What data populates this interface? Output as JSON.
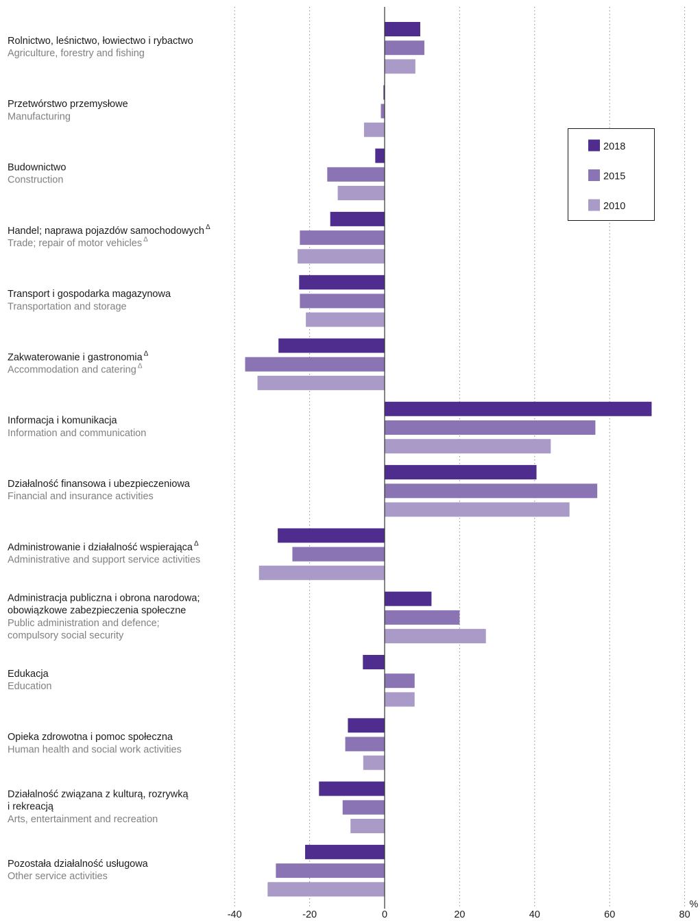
{
  "chart_data": {
    "type": "bar",
    "orientation": "horizontal",
    "unit": "%",
    "xlim": [
      -40,
      80
    ],
    "xticks": [
      "-40",
      "-20",
      "0",
      "20",
      "40",
      "60",
      "80"
    ],
    "grid": "vertical dotted",
    "legend_position": "top-right",
    "categories": [
      {
        "pl": [
          "Rolnictwo, leśnictwo, łowiectwo i rybactwo"
        ],
        "en": [
          "Agriculture, forestry and fishing"
        ],
        "pl_mark": "",
        "en_mark": ""
      },
      {
        "pl": [
          "Przetwórstwo przemysłowe"
        ],
        "en": [
          "Manufacturing"
        ],
        "pl_mark": "",
        "en_mark": ""
      },
      {
        "pl": [
          "Budownictwo"
        ],
        "en": [
          "Construction"
        ],
        "pl_mark": "",
        "en_mark": ""
      },
      {
        "pl": [
          "Handel; naprawa pojazdów samochodowych"
        ],
        "en": [
          "Trade; repair of motor vehicles"
        ],
        "pl_mark": "Δ",
        "en_mark": "Δ"
      },
      {
        "pl": [
          "Transport i gospodarka magazynowa"
        ],
        "en": [
          "Transportation and storage"
        ],
        "pl_mark": "",
        "en_mark": ""
      },
      {
        "pl": [
          "Zakwaterowanie i gastronomia"
        ],
        "en": [
          "Accommodation and catering"
        ],
        "pl_mark": "Δ",
        "en_mark": "Δ"
      },
      {
        "pl": [
          "Informacja i komunikacja"
        ],
        "en": [
          "Information and communication"
        ],
        "pl_mark": "",
        "en_mark": ""
      },
      {
        "pl": [
          "Działalność finansowa i ubezpieczeniowa"
        ],
        "en": [
          "Financial and insurance activities"
        ],
        "pl_mark": "",
        "en_mark": ""
      },
      {
        "pl": [
          "Administrowanie i działalność wspierająca"
        ],
        "en": [
          "Administrative and support service activities"
        ],
        "pl_mark": "Δ",
        "en_mark": ""
      },
      {
        "pl": [
          "Administracja publiczna i obrona narodowa;",
          "obowiązkowe zabezpieczenia społeczne"
        ],
        "en": [
          "Public administration and defence;",
          "compulsory social security"
        ],
        "pl_mark": "",
        "en_mark": ""
      },
      {
        "pl": [
          "Edukacja"
        ],
        "en": [
          "Education"
        ],
        "pl_mark": "",
        "en_mark": ""
      },
      {
        "pl": [
          "Opieka zdrowotna i pomoc społeczna"
        ],
        "en": [
          "Human health and social work activities"
        ],
        "pl_mark": "",
        "en_mark": ""
      },
      {
        "pl": [
          "Działalność związana z kulturą, rozrywką",
          "i rekreacją"
        ],
        "en": [
          "Arts, entertainment and recreation"
        ],
        "pl_mark": "",
        "en_mark": ""
      },
      {
        "pl": [
          "Pozostała działalność usługowa"
        ],
        "en": [
          "Other service activities"
        ],
        "pl_mark": "",
        "en_mark": ""
      }
    ],
    "series": [
      {
        "name": "2018",
        "color": "#4f2d8f",
        "values": [
          9.5,
          -0.3,
          -2.5,
          -14.5,
          -22.8,
          -28.3,
          71.2,
          40.5,
          -28.5,
          12.5,
          -5.8,
          -9.8,
          -17.5,
          -21.2
        ]
      },
      {
        "name": "2015",
        "color": "#8a74b4",
        "values": [
          10.6,
          -1.0,
          -15.3,
          -22.6,
          -22.6,
          -37.2,
          56.2,
          56.7,
          -24.6,
          20.0,
          8.0,
          -10.5,
          -11.2,
          -29.0
        ]
      },
      {
        "name": "2010",
        "color": "#a99ac8",
        "values": [
          8.2,
          -5.5,
          -12.5,
          -23.2,
          -21.0,
          -33.9,
          44.3,
          49.3,
          -33.5,
          27.0,
          8.0,
          -5.7,
          -9.1,
          -31.2
        ]
      }
    ]
  }
}
